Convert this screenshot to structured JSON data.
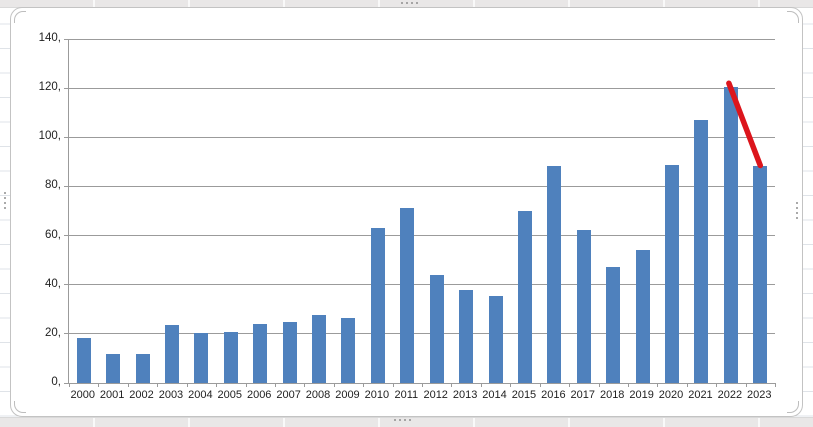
{
  "chart_data": {
    "type": "bar",
    "title": "",
    "xlabel": "",
    "ylabel": "",
    "categories": [
      "2000",
      "2001",
      "2002",
      "2003",
      "2004",
      "2005",
      "2006",
      "2007",
      "2008",
      "2009",
      "2010",
      "2011",
      "2012",
      "2013",
      "2014",
      "2015",
      "2016",
      "2017",
      "2018",
      "2019",
      "2020",
      "2021",
      "2022",
      "2023"
    ],
    "values": [
      18.3,
      11.7,
      12.0,
      23.6,
      20.3,
      20.8,
      24.0,
      25.0,
      27.5,
      26.6,
      63.2,
      71.3,
      43.8,
      37.9,
      35.3,
      69.9,
      88.2,
      62.1,
      47.4,
      54.2,
      88.7,
      107.0,
      120.4,
      88.5
    ],
    "ylim": [
      0,
      140
    ],
    "y_tick_step": 20,
    "y_tick_labels": [
      "0,",
      "20,",
      "40,",
      "60,",
      "80,",
      "100,",
      "120,",
      "140,"
    ],
    "grid": true,
    "legend": "none",
    "bar_color": "#4f81bd",
    "gridline_color": "#9b9b9b",
    "axis_color": "#9b9b9b",
    "annotations": [
      {
        "type": "line",
        "from": {
          "category": "2022",
          "value": 122
        },
        "to": {
          "category": "2023",
          "value": 88.5
        },
        "color": "#dc151c",
        "stroke_width": 5.5
      }
    ]
  },
  "excel": {
    "selection_handle_dots": 4
  }
}
